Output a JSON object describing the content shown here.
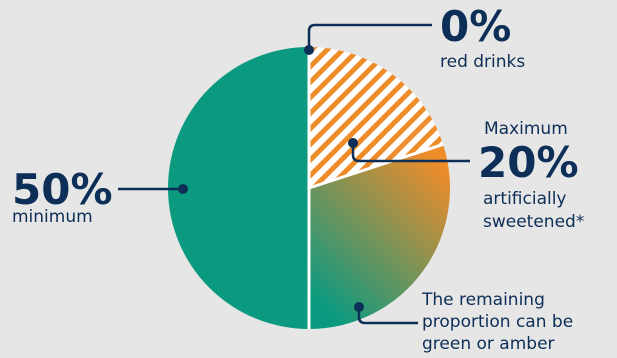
{
  "chart_data": {
    "type": "pie",
    "title": "",
    "slices": [
      {
        "label": "red drinks",
        "value": 0,
        "value_label": "0%",
        "color": "#e8453c",
        "pattern": "solid"
      },
      {
        "label": "Maximum 20% artificially sweetened*",
        "value": 20,
        "value_label": "20%",
        "color": "#ef8c2a",
        "pattern": "diagonal-hatch"
      },
      {
        "label": "The remaining proportion can be green or amber",
        "value": 30,
        "color": "#ef8c2a",
        "color_end": "#0b9a80",
        "pattern": "gradient"
      },
      {
        "label": "minimum",
        "value": 50,
        "value_label": "50%",
        "color": "#0b9a80",
        "pattern": "solid"
      }
    ]
  },
  "labels": {
    "red_pct": "0%",
    "red_text": "red drinks",
    "sweet_prefix": "Maximum",
    "sweet_pct": "20%",
    "sweet_line1": "artificially",
    "sweet_line2": "sweetened*",
    "remaining_line1": "The remaining",
    "remaining_line2": "proportion can be",
    "remaining_line3": "green or amber",
    "min_pct": "50%",
    "min_text": "minimum"
  }
}
